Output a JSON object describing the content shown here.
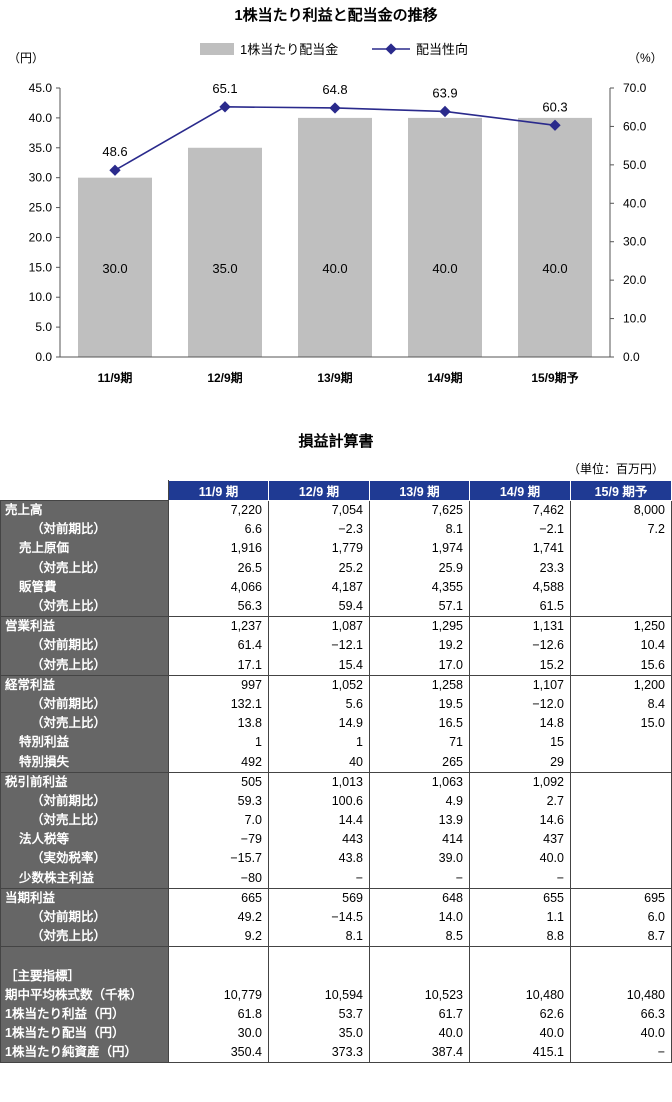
{
  "chart_data": {
    "type": "bar+line",
    "title": "1株当たり利益と配当金の推移",
    "categories": [
      "11/9期",
      "12/9期",
      "13/9期",
      "14/9期",
      "15/9期予"
    ],
    "series": [
      {
        "name": "1株当たり配当金",
        "type": "bar",
        "axis": "left",
        "values": [
          30.0,
          35.0,
          40.0,
          40.0,
          40.0
        ],
        "labels": [
          "30.0",
          "35.0",
          "40.0",
          "40.0",
          "40.0"
        ]
      },
      {
        "name": "配当性向",
        "type": "line",
        "axis": "right",
        "values": [
          48.6,
          65.1,
          64.8,
          63.9,
          60.3
        ],
        "labels": [
          "48.6",
          "65.1",
          "64.8",
          "63.9",
          "60.3"
        ]
      }
    ],
    "ylabel_left": "（円）",
    "ylabel_right": "（%）",
    "ylim_left": [
      0,
      45
    ],
    "ylim_right": [
      0,
      70
    ],
    "yticks_left": [
      "0.0",
      "5.0",
      "10.0",
      "15.0",
      "20.0",
      "25.0",
      "30.0",
      "35.0",
      "40.0",
      "45.0"
    ],
    "yticks_right": [
      "0.0",
      "10.0",
      "20.0",
      "30.0",
      "40.0",
      "50.0",
      "60.0",
      "70.0"
    ],
    "legend_position": "top-center",
    "grid": false,
    "colors": {
      "bar": "#bfbfbf",
      "line": "#2a2a8c"
    }
  },
  "table": {
    "title": "損益計算書",
    "unit": "（単位：百万円）",
    "headers": [
      "11/9 期",
      "12/9 期",
      "13/9 期",
      "14/9 期",
      "15/9 期予"
    ],
    "header_color": "#1f3a93",
    "label_color": "#666666",
    "groups": [
      {
        "rows": [
          {
            "label": "売上高",
            "indent": 0,
            "values": [
              "7,220",
              "7,054",
              "7,625",
              "7,462",
              "8,000"
            ]
          },
          {
            "label": "（対前期比）",
            "indent": 1,
            "values": [
              "6.6",
              "−2.3",
              "8.1",
              "−2.1",
              "7.2"
            ]
          },
          {
            "label": "売上原価",
            "indent": 2,
            "values": [
              "1,916",
              "1,779",
              "1,974",
              "1,741",
              ""
            ]
          },
          {
            "label": "（対売上比）",
            "indent": 1,
            "values": [
              "26.5",
              "25.2",
              "25.9",
              "23.3",
              ""
            ]
          },
          {
            "label": "販管費",
            "indent": 2,
            "values": [
              "4,066",
              "4,187",
              "4,355",
              "4,588",
              ""
            ]
          },
          {
            "label": "（対売上比）",
            "indent": 1,
            "values": [
              "56.3",
              "59.4",
              "57.1",
              "61.5",
              ""
            ]
          }
        ]
      },
      {
        "rows": [
          {
            "label": "営業利益",
            "indent": 0,
            "values": [
              "1,237",
              "1,087",
              "1,295",
              "1,131",
              "1,250"
            ]
          },
          {
            "label": "（対前期比）",
            "indent": 1,
            "values": [
              "61.4",
              "−12.1",
              "19.2",
              "−12.6",
              "10.4"
            ]
          },
          {
            "label": "（対売上比）",
            "indent": 1,
            "values": [
              "17.1",
              "15.4",
              "17.0",
              "15.2",
              "15.6"
            ]
          }
        ]
      },
      {
        "rows": [
          {
            "label": "経常利益",
            "indent": 0,
            "values": [
              "997",
              "1,052",
              "1,258",
              "1,107",
              "1,200"
            ]
          },
          {
            "label": "（対前期比）",
            "indent": 1,
            "values": [
              "132.1",
              "5.6",
              "19.5",
              "−12.0",
              "8.4"
            ]
          },
          {
            "label": "（対売上比）",
            "indent": 1,
            "values": [
              "13.8",
              "14.9",
              "16.5",
              "14.8",
              "15.0"
            ]
          },
          {
            "label": "特別利益",
            "indent": 2,
            "values": [
              "1",
              "1",
              "71",
              "15",
              ""
            ]
          },
          {
            "label": "特別損失",
            "indent": 2,
            "values": [
              "492",
              "40",
              "265",
              "29",
              ""
            ]
          }
        ]
      },
      {
        "rows": [
          {
            "label": "税引前利益",
            "indent": 0,
            "values": [
              "505",
              "1,013",
              "1,063",
              "1,092",
              ""
            ]
          },
          {
            "label": "（対前期比）",
            "indent": 1,
            "values": [
              "59.3",
              "100.6",
              "4.9",
              "2.7",
              ""
            ]
          },
          {
            "label": "（対売上比）",
            "indent": 1,
            "values": [
              "7.0",
              "14.4",
              "13.9",
              "14.6",
              ""
            ]
          },
          {
            "label": "法人税等",
            "indent": 2,
            "values": [
              "−79",
              "443",
              "414",
              "437",
              ""
            ]
          },
          {
            "label": "（実効税率）",
            "indent": 1,
            "values": [
              "−15.7",
              "43.8",
              "39.0",
              "40.0",
              ""
            ]
          },
          {
            "label": "少数株主利益",
            "indent": 2,
            "values": [
              "−80",
              "−",
              "−",
              "−",
              ""
            ]
          }
        ]
      },
      {
        "rows": [
          {
            "label": "当期利益",
            "indent": 0,
            "values": [
              "665",
              "569",
              "648",
              "655",
              "695"
            ]
          },
          {
            "label": "（対前期比）",
            "indent": 1,
            "values": [
              "49.2",
              "−14.5",
              "14.0",
              "1.1",
              "6.0"
            ]
          },
          {
            "label": "（対売上比）",
            "indent": 1,
            "values": [
              "9.2",
              "8.1",
              "8.5",
              "8.8",
              "8.7"
            ]
          }
        ]
      },
      {
        "rows": [
          {
            "label": "",
            "indent": 0,
            "values": [
              "",
              "",
              "",
              "",
              ""
            ]
          },
          {
            "label": "［主要指標］",
            "indent": 0,
            "values": [
              "",
              "",
              "",
              "",
              ""
            ]
          },
          {
            "label": "期中平均株式数（千株）",
            "indent": 0,
            "values": [
              "10,779",
              "10,594",
              "10,523",
              "10,480",
              "10,480"
            ]
          },
          {
            "label": "1株当たり利益（円）",
            "indent": 0,
            "values": [
              "61.8",
              "53.7",
              "61.7",
              "62.6",
              "66.3"
            ]
          },
          {
            "label": "1株当たり配当（円）",
            "indent": 0,
            "values": [
              "30.0",
              "35.0",
              "40.0",
              "40.0",
              "40.0"
            ]
          },
          {
            "label": "1株当たり純資産（円）",
            "indent": 0,
            "values": [
              "350.4",
              "373.3",
              "387.4",
              "415.1",
              "−"
            ]
          }
        ]
      }
    ]
  }
}
